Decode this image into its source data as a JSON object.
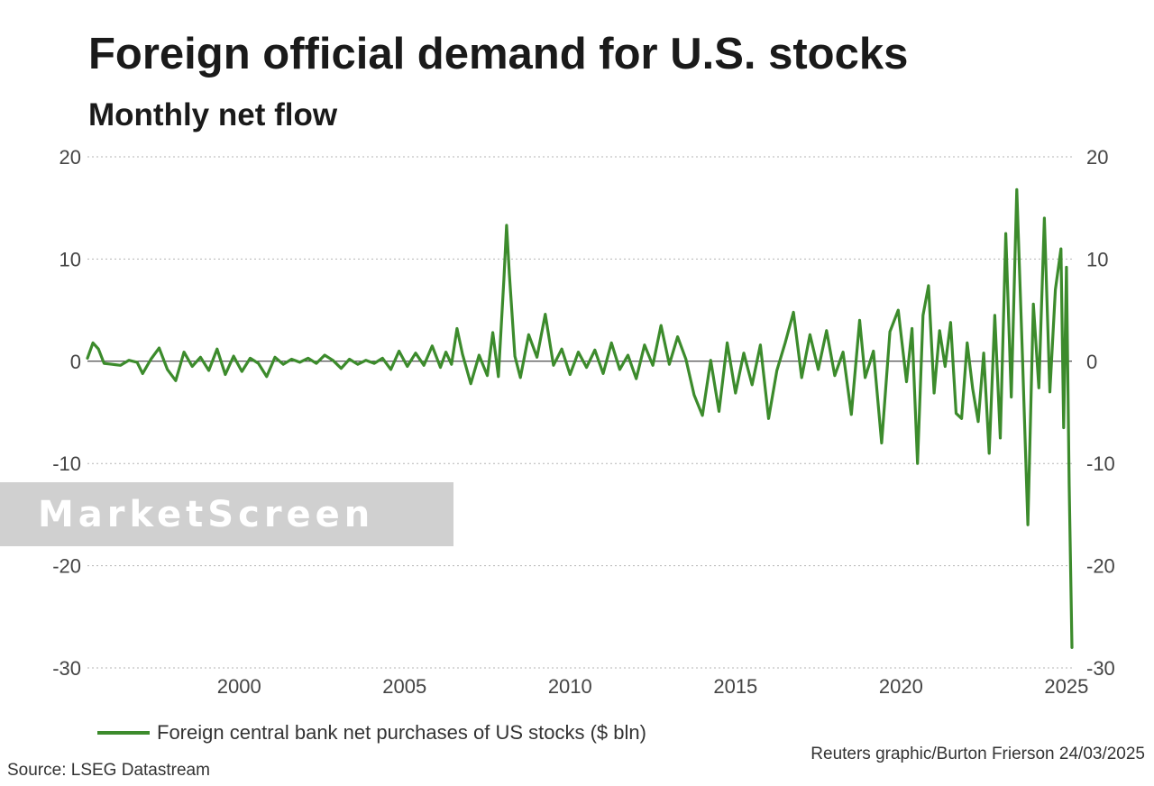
{
  "title": "Foreign official demand for U.S. stocks",
  "subtitle": "Monthly net flow",
  "legend_label": "Foreign central bank net purchases of US stocks ($ bln)",
  "credit": "Reuters graphic/Burton Frierson 24/03/2025",
  "source": "Source: LSEG Datastream",
  "watermark": "MarketScreen",
  "colors": {
    "series": "#3c8b2c",
    "grid": "#b5b5b5",
    "zero": "#222222",
    "ticks": "#444444"
  },
  "chart_data": {
    "type": "line",
    "title": "Foreign official demand for U.S. stocks",
    "subtitle": "Monthly net flow",
    "xlabel": "",
    "ylabel": "",
    "ylim": [
      -30,
      20
    ],
    "yticks": [
      20,
      10,
      0,
      -10,
      -20,
      -30
    ],
    "xlim": [
      "1995-06",
      "2025-03"
    ],
    "xticks": [
      2000,
      2005,
      2010,
      2015,
      2020,
      2025
    ],
    "grid": true,
    "y_axis_both_sides": true,
    "legend_position": "bottom-left",
    "series": [
      {
        "name": "Foreign central bank net purchases of US stocks ($ bln)",
        "points": [
          [
            "1995-06",
            0.3
          ],
          [
            "1995-08",
            1.8
          ],
          [
            "1995-10",
            1.2
          ],
          [
            "1995-12",
            -0.2
          ],
          [
            "1996-03",
            -0.3
          ],
          [
            "1996-06",
            -0.4
          ],
          [
            "1996-09",
            0.1
          ],
          [
            "1996-12",
            -0.1
          ],
          [
            "1997-02",
            -1.2
          ],
          [
            "1997-05",
            0.2
          ],
          [
            "1997-08",
            1.3
          ],
          [
            "1997-11",
            -0.8
          ],
          [
            "1998-02",
            -1.9
          ],
          [
            "1998-05",
            0.9
          ],
          [
            "1998-08",
            -0.5
          ],
          [
            "1998-11",
            0.4
          ],
          [
            "1999-02",
            -0.9
          ],
          [
            "1999-05",
            1.2
          ],
          [
            "1999-08",
            -1.3
          ],
          [
            "1999-11",
            0.5
          ],
          [
            "2000-02",
            -1.0
          ],
          [
            "2000-05",
            0.3
          ],
          [
            "2000-08",
            -0.2
          ],
          [
            "2000-11",
            -1.5
          ],
          [
            "2001-02",
            0.4
          ],
          [
            "2001-05",
            -0.3
          ],
          [
            "2001-08",
            0.2
          ],
          [
            "2001-11",
            -0.1
          ],
          [
            "2002-02",
            0.3
          ],
          [
            "2002-05",
            -0.2
          ],
          [
            "2002-08",
            0.6
          ],
          [
            "2002-11",
            0.1
          ],
          [
            "2003-02",
            -0.7
          ],
          [
            "2003-05",
            0.2
          ],
          [
            "2003-08",
            -0.3
          ],
          [
            "2003-11",
            0.1
          ],
          [
            "2004-02",
            -0.2
          ],
          [
            "2004-05",
            0.3
          ],
          [
            "2004-08",
            -0.8
          ],
          [
            "2004-11",
            1.0
          ],
          [
            "2005-02",
            -0.5
          ],
          [
            "2005-05",
            0.8
          ],
          [
            "2005-08",
            -0.4
          ],
          [
            "2005-11",
            1.5
          ],
          [
            "2006-02",
            -0.6
          ],
          [
            "2006-04",
            0.9
          ],
          [
            "2006-06",
            -0.3
          ],
          [
            "2006-08",
            3.2
          ],
          [
            "2006-10",
            0.7
          ],
          [
            "2007-01",
            -2.2
          ],
          [
            "2007-04",
            0.6
          ],
          [
            "2007-07",
            -1.4
          ],
          [
            "2007-09",
            2.8
          ],
          [
            "2007-11",
            -1.5
          ],
          [
            "2008-01",
            8.0
          ],
          [
            "2008-02",
            13.3
          ],
          [
            "2008-03",
            8.5
          ],
          [
            "2008-05",
            0.5
          ],
          [
            "2008-07",
            -1.6
          ],
          [
            "2008-10",
            2.6
          ],
          [
            "2009-01",
            0.4
          ],
          [
            "2009-04",
            4.6
          ],
          [
            "2009-07",
            -0.4
          ],
          [
            "2009-10",
            1.2
          ],
          [
            "2010-01",
            -1.3
          ],
          [
            "2010-04",
            0.9
          ],
          [
            "2010-07",
            -0.6
          ],
          [
            "2010-10",
            1.1
          ],
          [
            "2011-01",
            -1.2
          ],
          [
            "2011-04",
            1.8
          ],
          [
            "2011-07",
            -0.8
          ],
          [
            "2011-10",
            0.6
          ],
          [
            "2012-01",
            -1.7
          ],
          [
            "2012-04",
            1.6
          ],
          [
            "2012-07",
            -0.4
          ],
          [
            "2012-10",
            3.5
          ],
          [
            "2013-01",
            -0.3
          ],
          [
            "2013-04",
            2.4
          ],
          [
            "2013-07",
            0.2
          ],
          [
            "2013-10",
            -3.3
          ],
          [
            "2014-01",
            -5.3
          ],
          [
            "2014-04",
            0.1
          ],
          [
            "2014-07",
            -4.9
          ],
          [
            "2014-10",
            1.8
          ],
          [
            "2015-01",
            -3.1
          ],
          [
            "2015-04",
            0.8
          ],
          [
            "2015-07",
            -2.3
          ],
          [
            "2015-10",
            1.6
          ],
          [
            "2016-01",
            -5.6
          ],
          [
            "2016-04",
            -0.9
          ],
          [
            "2016-07",
            1.8
          ],
          [
            "2016-10",
            4.8
          ],
          [
            "2017-01",
            -1.6
          ],
          [
            "2017-04",
            2.6
          ],
          [
            "2017-07",
            -0.8
          ],
          [
            "2017-10",
            3.0
          ],
          [
            "2018-01",
            -1.4
          ],
          [
            "2018-04",
            0.9
          ],
          [
            "2018-07",
            -5.2
          ],
          [
            "2018-10",
            4.0
          ],
          [
            "2018-12",
            -1.6
          ],
          [
            "2019-03",
            1.0
          ],
          [
            "2019-06",
            -8.0
          ],
          [
            "2019-09",
            2.9
          ],
          [
            "2019-12",
            5.0
          ],
          [
            "2020-03",
            -2.0
          ],
          [
            "2020-05",
            3.2
          ],
          [
            "2020-07",
            -10.0
          ],
          [
            "2020-09",
            4.5
          ],
          [
            "2020-11",
            7.4
          ],
          [
            "2021-01",
            -3.1
          ],
          [
            "2021-03",
            3.0
          ],
          [
            "2021-05",
            -0.5
          ],
          [
            "2021-07",
            3.8
          ],
          [
            "2021-09",
            -5.1
          ],
          [
            "2021-11",
            -5.6
          ],
          [
            "2022-01",
            1.8
          ],
          [
            "2022-03",
            -2.7
          ],
          [
            "2022-05",
            -5.9
          ],
          [
            "2022-07",
            0.8
          ],
          [
            "2022-09",
            -9.0
          ],
          [
            "2022-11",
            4.5
          ],
          [
            "2023-01",
            -7.5
          ],
          [
            "2023-03",
            12.5
          ],
          [
            "2023-05",
            -3.5
          ],
          [
            "2023-07",
            16.8
          ],
          [
            "2023-09",
            1.0
          ],
          [
            "2023-11",
            -16.0
          ],
          [
            "2024-01",
            5.6
          ],
          [
            "2024-03",
            -2.6
          ],
          [
            "2024-05",
            14.0
          ],
          [
            "2024-07",
            -3.0
          ],
          [
            "2024-09",
            7.0
          ],
          [
            "2024-11",
            11.0
          ],
          [
            "2024-12",
            -6.5
          ],
          [
            "2025-01",
            9.2
          ],
          [
            "2025-02",
            -12.0
          ],
          [
            "2025-03",
            -28.0
          ]
        ]
      }
    ]
  }
}
